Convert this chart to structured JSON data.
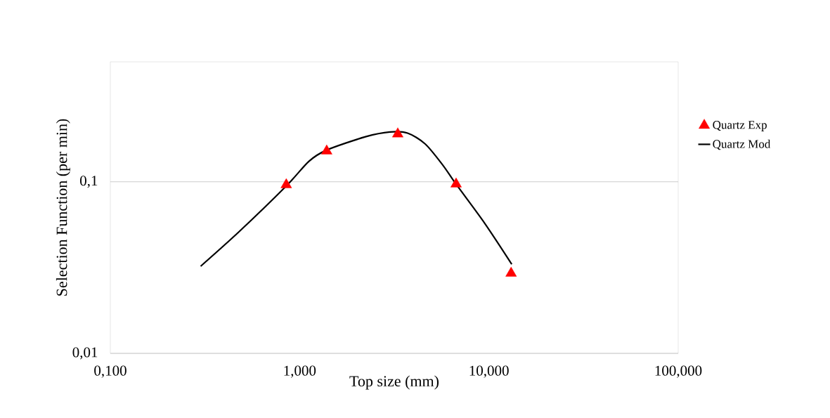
{
  "chart_data": {
    "type": "scatter",
    "xlabel": "Top size (mm)",
    "ylabel": "Selection Function (per min)",
    "log": "xy",
    "xlim": [
      0.1,
      100
    ],
    "ylim": [
      0.01,
      0.5
    ],
    "xticks": [
      {
        "value": 0.1,
        "label": "0,100"
      },
      {
        "value": 1,
        "label": "1,000"
      },
      {
        "value": 10,
        "label": "10,000"
      },
      {
        "value": 100,
        "label": "100,000"
      }
    ],
    "yticks": [
      {
        "value": 0.01,
        "label": "0,01"
      },
      {
        "value": 0.1,
        "label": "0,1"
      }
    ],
    "grid": "y",
    "legend": "right",
    "series": [
      {
        "name": "Quartz Exp",
        "color": "#ff0000",
        "marker": "triangle",
        "x": [
          0.85,
          1.39,
          3.3,
          6.71,
          13.1
        ],
        "values": [
          0.096,
          0.151,
          0.19,
          0.097,
          0.0293
        ]
      },
      {
        "name": "Quartz Mod",
        "type": "line",
        "color": "#000000",
        "marker": "none",
        "x": [
          0.3,
          0.479,
          0.85,
          1.12,
          1.39,
          2.23,
          3.0,
          3.72,
          4.61,
          5.71,
          6.7,
          9.5,
          13.2
        ],
        "values": [
          0.0322,
          0.0512,
          0.0945,
          0.1316,
          0.153,
          0.183,
          0.195,
          0.192,
          0.166,
          0.125,
          0.097,
          0.0573,
          0.0331
        ]
      }
    ]
  }
}
